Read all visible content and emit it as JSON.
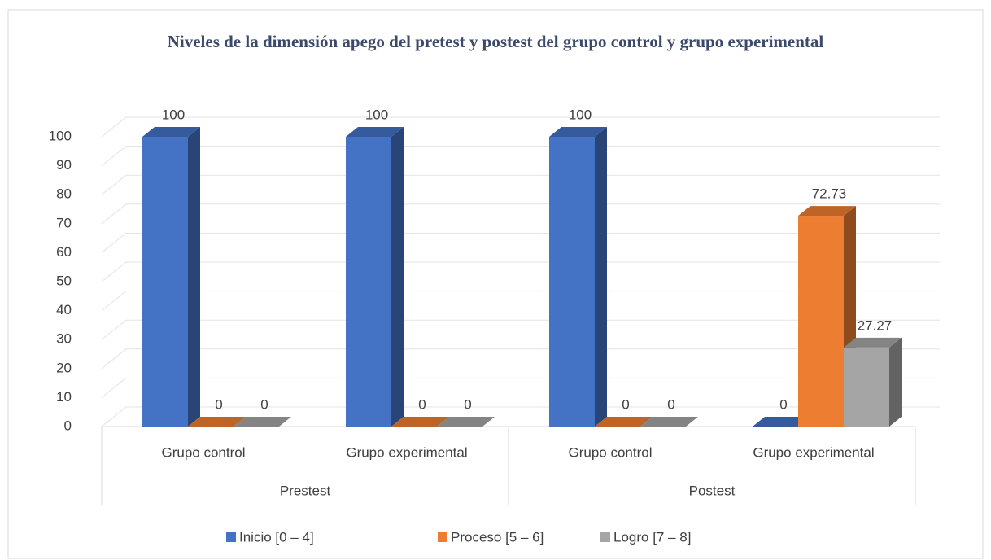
{
  "chart_data": {
    "type": "bar3d",
    "title": "Niveles de la dimensión apego del pretest y postest del grupo control y grupo experimental",
    "categories": [
      "Grupo control",
      "Grupo experimental",
      "Grupo control",
      "Grupo experimental"
    ],
    "groups": [
      "Prestest",
      "Postest"
    ],
    "series": [
      {
        "name": "Inicio [0 – 4]",
        "color": "#4472c4",
        "values": [
          100,
          100,
          100,
          0
        ]
      },
      {
        "name": "Proceso [5 – 6]",
        "color": "#ed7d31",
        "values": [
          0,
          0,
          0,
          72.73
        ]
      },
      {
        "name": "Logro [7 – 8]",
        "color": "#a5a5a5",
        "values": [
          0,
          0,
          0,
          27.27
        ]
      }
    ],
    "ylim": [
      0,
      100
    ],
    "yticks": [
      0,
      10,
      20,
      30,
      40,
      50,
      60,
      70,
      80,
      90,
      100
    ],
    "grid": true,
    "legend": "bottom"
  }
}
